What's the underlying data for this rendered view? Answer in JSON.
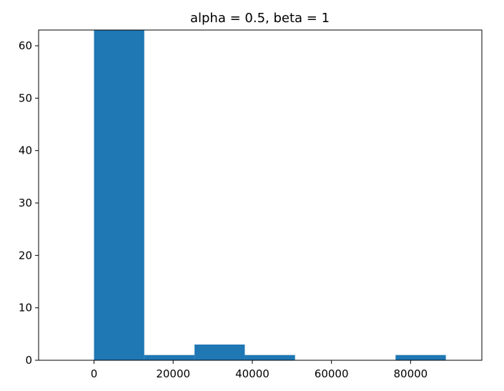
{
  "chart_data": {
    "type": "bar",
    "title": "alpha = 0.5, beta = 1",
    "xlabel": "",
    "ylabel": "",
    "xlim": [
      -14000,
      98000
    ],
    "ylim": [
      0,
      63
    ],
    "grid": false,
    "bar_color": "#1f77b4",
    "bins": [
      {
        "x0": 0,
        "x1": 12700,
        "count": 63
      },
      {
        "x0": 12700,
        "x1": 25400,
        "count": 1
      },
      {
        "x0": 25400,
        "x1": 38100,
        "count": 3
      },
      {
        "x0": 38100,
        "x1": 50800,
        "count": 1
      },
      {
        "x0": 50800,
        "x1": 63500,
        "count": 0
      },
      {
        "x0": 63500,
        "x1": 76200,
        "count": 0
      },
      {
        "x0": 76200,
        "x1": 88900,
        "count": 1
      }
    ],
    "x_ticks": [
      {
        "value": 0,
        "label": "0"
      },
      {
        "value": 20000,
        "label": "20000"
      },
      {
        "value": 40000,
        "label": "40000"
      },
      {
        "value": 60000,
        "label": "60000"
      },
      {
        "value": 80000,
        "label": "80000"
      }
    ],
    "y_ticks": [
      {
        "value": 0,
        "label": "0"
      },
      {
        "value": 10,
        "label": "10"
      },
      {
        "value": 20,
        "label": "20"
      },
      {
        "value": 30,
        "label": "30"
      },
      {
        "value": 40,
        "label": "40"
      },
      {
        "value": 50,
        "label": "50"
      },
      {
        "value": 60,
        "label": "60"
      }
    ]
  }
}
